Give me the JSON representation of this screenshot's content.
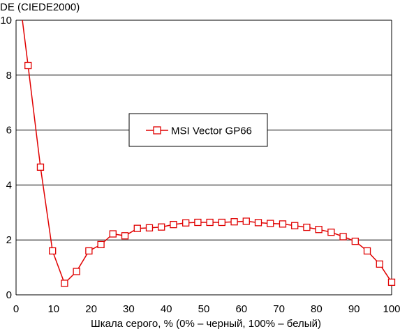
{
  "chart_data": {
    "type": "line",
    "title": "",
    "ylabel": "DE (CIEDE2000)",
    "xlabel": "Шкала серого, % (0% – черный, 100% – белый)",
    "xlim": [
      0,
      100
    ],
    "ylim": [
      0,
      10
    ],
    "xticks": [
      0,
      10,
      20,
      30,
      40,
      50,
      60,
      70,
      80,
      90,
      100
    ],
    "yticks": [
      0,
      2,
      4,
      6,
      8,
      10
    ],
    "grid": "horizontal",
    "legend_position": "center-left",
    "series": [
      {
        "name": "MSI Vector GP66",
        "color": "#e00000",
        "marker": "open-square",
        "x": [
          1.6,
          3.2,
          6.5,
          9.7,
          12.9,
          16.1,
          19.4,
          22.6,
          25.8,
          29.0,
          32.3,
          35.5,
          38.7,
          41.9,
          45.2,
          48.4,
          51.6,
          54.8,
          58.1,
          61.3,
          64.5,
          67.7,
          71.0,
          74.2,
          77.4,
          80.6,
          83.9,
          87.1,
          90.3,
          93.5,
          96.8,
          100
        ],
        "y": [
          10.1,
          8.35,
          4.65,
          1.6,
          0.42,
          0.85,
          1.6,
          1.83,
          2.22,
          2.15,
          2.42,
          2.44,
          2.47,
          2.56,
          2.62,
          2.64,
          2.64,
          2.64,
          2.66,
          2.68,
          2.63,
          2.6,
          2.58,
          2.52,
          2.46,
          2.38,
          2.28,
          2.12,
          1.95,
          1.6,
          1.12,
          0.46
        ]
      }
    ]
  }
}
